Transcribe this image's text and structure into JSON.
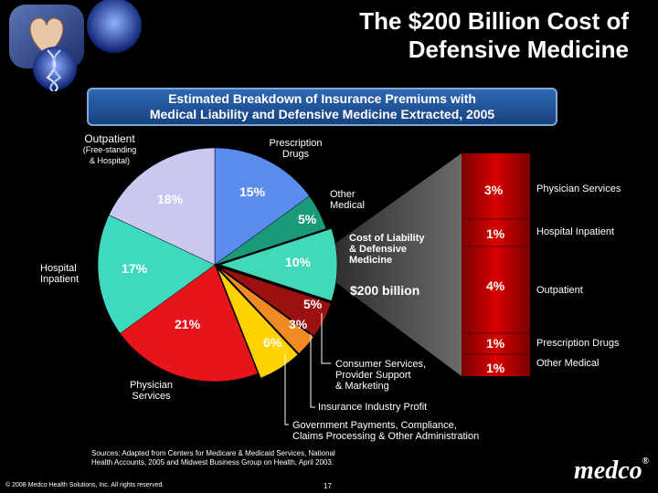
{
  "header": {
    "title_line1": "The $200 Billion Cost of",
    "title_line2": "Defensive Medicine",
    "logo_images": [
      "heart-hands-image",
      "dna-globe-image"
    ]
  },
  "banner": {
    "line1": "Estimated Breakdown of Insurance Premiums with",
    "line2": "Medical Liability and Defensive Medicine Extracted, 2005"
  },
  "pie_labels": {
    "outpatient": "Outpatient",
    "outpatient_sub1": "(Free-standing",
    "outpatient_sub2": "& Hospital)",
    "prescription_line1": "Prescription",
    "prescription_line2": "Drugs",
    "other_medical_line1": "Other",
    "other_medical_line2": "Medical",
    "hospital_inpatient_line1": "Hospital",
    "hospital_inpatient_line2": "Inpatient",
    "physician_line1": "Physician",
    "physician_line2": "Services"
  },
  "callouts": {
    "liability_line1": "Cost of Liability",
    "liability_line2": "& Defensive",
    "liability_line3": "Medicine",
    "liability_amount": "$200 billion",
    "consumer_line1": "Consumer Services,",
    "consumer_line2": "Provider Support",
    "consumer_line3": "& Marketing",
    "insurance_profit": "Insurance Industry Profit",
    "government_line1": "Government Payments, Compliance,",
    "government_line2": "Claims Processing & Other Administration"
  },
  "chart_data": {
    "type": "pie",
    "title": "Estimated Breakdown of Insurance Premiums with Medical Liability and Defensive Medicine Extracted, 2005",
    "slices": [
      {
        "label": "Prescription Drugs",
        "value": 15,
        "display": "15%",
        "color": "#5b8cf0"
      },
      {
        "label": "Other Medical",
        "value": 5,
        "display": "5%",
        "color": "#1a9a78"
      },
      {
        "label": "Cost of Liability & Defensive Medicine",
        "value": 10,
        "display": "10%",
        "color": "#42d9b8"
      },
      {
        "label": "Consumer Services, Provider Support & Marketing",
        "value": 5,
        "display": "5%",
        "color": "#9b1010"
      },
      {
        "label": "Insurance Industry Profit",
        "value": 3,
        "display": "3%",
        "color": "#f08a24"
      },
      {
        "label": "Government Payments, Compliance, Claims Processing & Other Administration",
        "value": 6,
        "display": "6%",
        "color": "#ffd200"
      },
      {
        "label": "Physician Services",
        "value": 21,
        "display": "21%",
        "color": "#e8141c"
      },
      {
        "label": "Hospital Inpatient",
        "value": 17,
        "display": "17%",
        "color": "#3fd9c0"
      },
      {
        "label": "Outpatient (Free-standing & Hospital)",
        "value": 18,
        "display": "18%",
        "color": "#c8c8f0"
      }
    ],
    "breakdown": [
      {
        "value": "3%",
        "label": "Physician Services"
      },
      {
        "value": "1%",
        "label": "Hospital Inpatient"
      },
      {
        "value": "4%",
        "label": "Outpatient"
      },
      {
        "value": "1%",
        "label": "Prescription Drugs"
      },
      {
        "value": "1%",
        "label": "Other Medical"
      }
    ]
  },
  "footer": {
    "sources_line1": "Sources: Adapted from Centers for Medicare & Medicaid Services, National",
    "sources_line2": "Health Accounts, 2005 and Midwest Business Group on Health, April 2003.",
    "copyright": "© 2008 Medco Health Solutions, Inc. All rights reserved.",
    "page_number": "17",
    "logo_text": "medco",
    "logo_mark": "®"
  }
}
